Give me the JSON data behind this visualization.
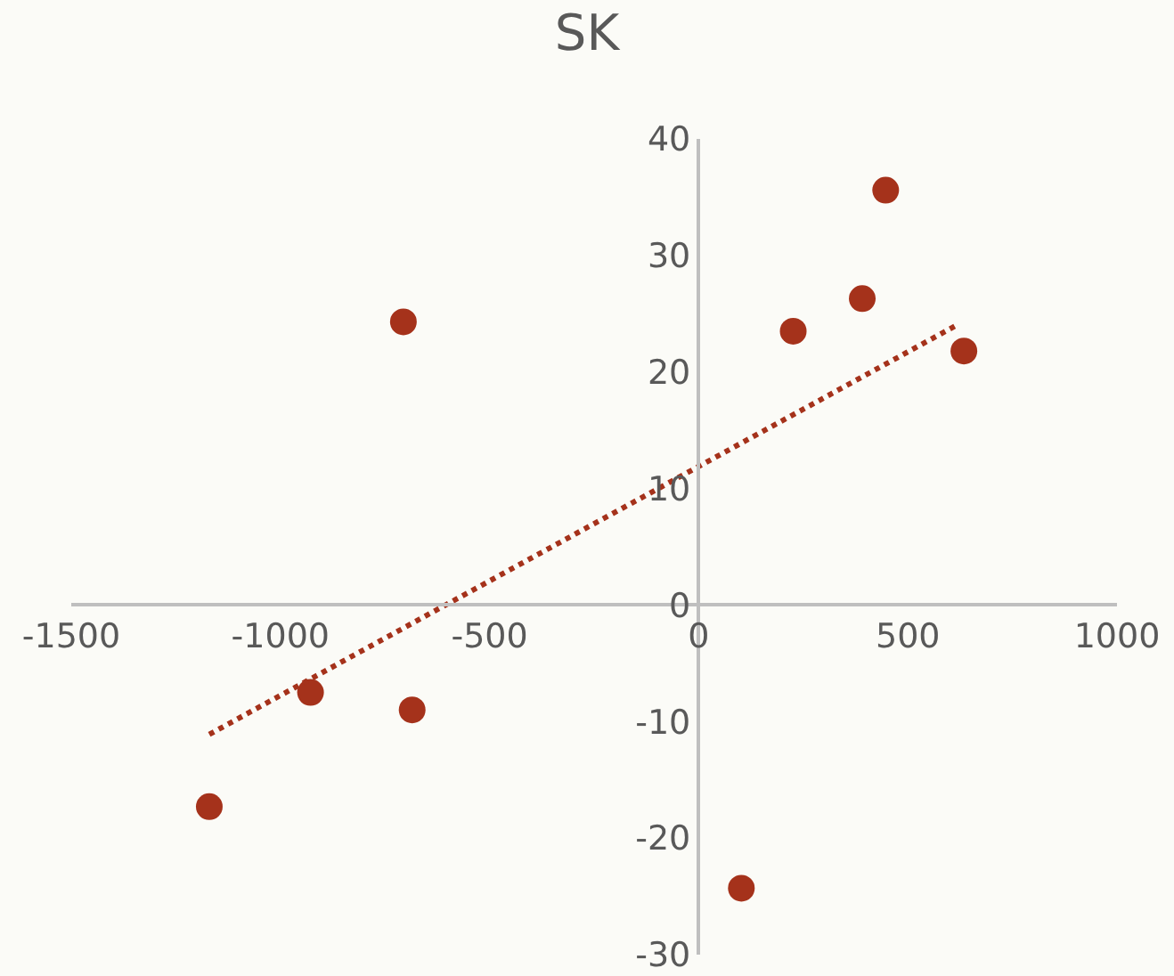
{
  "chart_data": {
    "type": "scatter",
    "title": "SK",
    "marker": "circle",
    "grid": false,
    "xlim": [
      -1500,
      1000
    ],
    "xticks": [
      -1500,
      -1000,
      -500,
      0,
      500,
      1000
    ],
    "ylim": [
      -30,
      40
    ],
    "yticks": [
      -30,
      -20,
      -10,
      0,
      10,
      20,
      30,
      40
    ],
    "series": [
      {
        "color": "#a5321b",
        "x": [
          -1170,
          -928,
          -706,
          -685,
          102,
          226,
          391,
          447,
          634
        ],
        "values": [
          -17.3,
          -7.5,
          24.3,
          -9,
          -24.3,
          23.5,
          26.3,
          35.6,
          21.8
        ]
      },
      {
        "type": "line",
        "line_style": "dotted",
        "marker": "none",
        "color": "#a5321b",
        "x": [
          -1170,
          621
        ],
        "values": [
          -11.1,
          24.1
        ]
      }
    ]
  }
}
